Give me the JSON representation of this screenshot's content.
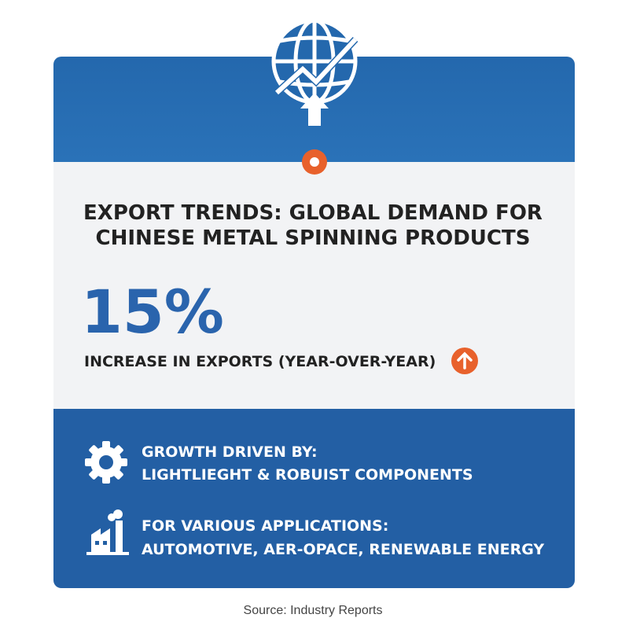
{
  "header": {
    "title_lines": [
      "EXPORT TRENDS: GLOBAL DEMAND FOR",
      "CHINESE METAL SPINNING PRODUCTS"
    ]
  },
  "stat": {
    "value": "15%",
    "label": "INCREASE IN EXPORTS (YEAR-OVER-YEAR)"
  },
  "items": [
    {
      "heading": "GROWTH DRIVEN BY:",
      "text": "LIGHTLIEGHT & ROBUIST COMPONENTS"
    },
    {
      "heading": "FOR VARIOUS APPLICATIONS:",
      "text": "AUTOMOTIVE, AER-OPACE, RENEWABLE ENERGY"
    }
  ],
  "source": "Source: Industry Reports"
}
